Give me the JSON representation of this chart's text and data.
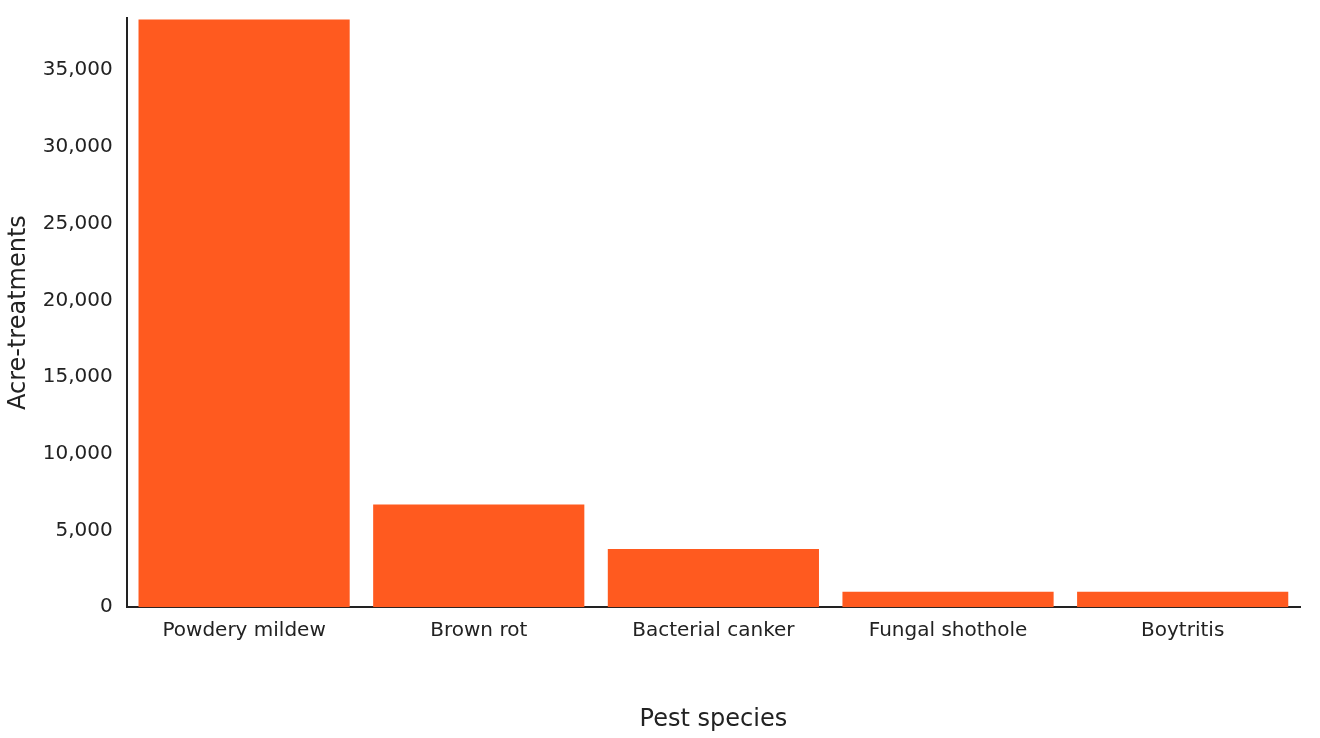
{
  "chart_data": {
    "type": "bar",
    "xlabel": "Pest species",
    "ylabel": "Acre-treatments",
    "categories": [
      "Powdery mildew",
      "Brown rot",
      "Bacterial canker",
      "Fungal shothole",
      "Boytritis"
    ],
    "values": [
      38300,
      6700,
      3800,
      1000,
      1000
    ],
    "color": "#ff5a1f",
    "ylim": [
      0,
      38400
    ],
    "yticks": [
      {
        "value": 0,
        "label": "0"
      },
      {
        "value": 5000,
        "label": "5,000"
      },
      {
        "value": 10000,
        "label": "10,000"
      },
      {
        "value": 15000,
        "label": "15,000"
      },
      {
        "value": 20000,
        "label": "20,000"
      },
      {
        "value": 25000,
        "label": "25,000"
      },
      {
        "value": 30000,
        "label": "30,000"
      },
      {
        "value": 35000,
        "label": "35,000"
      }
    ],
    "grid": false,
    "legend": false
  }
}
